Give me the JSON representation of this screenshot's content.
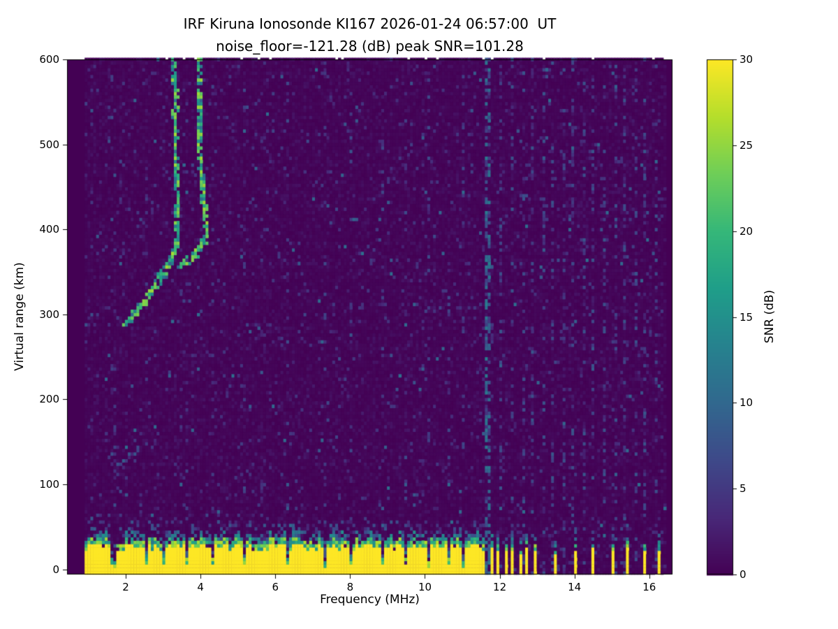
{
  "figure": {
    "background_color": "#ffffff",
    "text_color": "#000000"
  },
  "chart_data": {
    "type": "heatmap",
    "title": "IRF Kiruna Ionosonde KI167 2026-01-24 06:57:00  UT",
    "subtitle": "noise_floor=-121.28 (dB) peak SNR=101.28",
    "xlabel": "Frequency (MHz)",
    "ylabel": "Virtual range (km)",
    "colorbar_label": "SNR (dB)",
    "xlim": [
      0.43,
      16.62
    ],
    "ylim": [
      -6,
      600
    ],
    "xticks": [
      2,
      4,
      6,
      8,
      10,
      12,
      14,
      16
    ],
    "yticks": [
      0,
      100,
      200,
      300,
      400,
      500,
      600
    ],
    "colorbar_ticks": [
      0,
      5,
      10,
      15,
      20,
      25,
      30
    ],
    "clim": [
      0,
      30
    ],
    "colormap": "viridis",
    "colormap_stops": [
      "#440154",
      "#482878",
      "#3e4989",
      "#31688e",
      "#26828e",
      "#1f9e89",
      "#35b779",
      "#6ece58",
      "#b5de2b",
      "#fde725"
    ],
    "grid": false,
    "features": {
      "noise_seed": 20260124,
      "data_freq_range": [
        0.9,
        16.45
      ],
      "cell_mhz": 0.077,
      "cell_km": 4,
      "ground_echo": {
        "freq_range": [
          0.9,
          11.62
        ],
        "top_km": 27,
        "value": 30,
        "notches_mhz": [
          1.67,
          2.52,
          3.04,
          3.62,
          4.35,
          5.2,
          6.3,
          7.32,
          8.02,
          8.85,
          9.45,
          10.12,
          10.62,
          11.05
        ],
        "notch_width_mhz": 0.08
      },
      "isolated_ground_bars": {
        "freqs_mhz": [
          11.78,
          11.97,
          12.16,
          12.35,
          12.55,
          12.75,
          12.98,
          13.48,
          14.06,
          14.48,
          15.0,
          15.45,
          15.9,
          16.28
        ],
        "width_mhz": 0.08,
        "top_km": 21
      },
      "rfi_stripes": [
        {
          "freqs_mhz": [
            11.7
          ],
          "width_mhz": 0.12,
          "vmin": 4,
          "vmax": 13,
          "density": 0.5
        },
        {
          "freqs_mhz": [
            12.05,
            12.35,
            12.62,
            12.9,
            13.15,
            13.42,
            13.7,
            13.98,
            14.25,
            14.52,
            14.8,
            15.08,
            15.35,
            15.62,
            15.9,
            16.18
          ],
          "width_mhz": 0.08,
          "vmin": 2,
          "vmax": 8,
          "density": 0.22
        },
        {
          "freqs_mhz": [
            5.2,
            6.3,
            7.32,
            8.02,
            8.85,
            9.45,
            10.12,
            10.62,
            11.05
          ],
          "width_mhz": 0.08,
          "vmin": 2,
          "vmax": 7,
          "density": 0.1
        },
        {
          "freqs_mhz": [
            1.67,
            2.52,
            3.62,
            4.35
          ],
          "width_mhz": 0.08,
          "vmin": 2,
          "vmax": 6,
          "density": 0.07
        }
      ],
      "echo_traces": [
        {
          "name": "f-layer-trace-left-branch",
          "points_mhz_km": [
            [
              2.02,
              288
            ],
            [
              2.2,
              298
            ],
            [
              2.45,
              312
            ],
            [
              2.7,
              328
            ],
            [
              2.95,
              345
            ],
            [
              3.12,
              358
            ],
            [
              3.27,
              370
            ],
            [
              3.36,
              385
            ],
            [
              3.38,
              420
            ],
            [
              3.35,
              470
            ],
            [
              3.33,
              530
            ],
            [
              3.31,
              600
            ]
          ],
          "vmin": 10,
          "vmax": 26,
          "width_mhz": 0.1,
          "width_km": 10,
          "density": 2.6
        },
        {
          "name": "f-layer-trace-right-branch",
          "points_mhz_km": [
            [
              3.42,
              356
            ],
            [
              3.62,
              362
            ],
            [
              3.85,
              371
            ],
            [
              4.05,
              382
            ],
            [
              4.17,
              398
            ],
            [
              4.1,
              430
            ],
            [
              4.0,
              480
            ],
            [
              3.96,
              540
            ],
            [
              3.97,
              600
            ]
          ],
          "vmin": 10,
          "vmax": 26,
          "width_mhz": 0.1,
          "width_km": 10,
          "density": 2.6
        },
        {
          "name": "faint-low-streak",
          "points_mhz_km": [
            [
              1.7,
              120
            ],
            [
              2.0,
              130
            ],
            [
              2.35,
              142
            ]
          ],
          "vmin": 3,
          "vmax": 9,
          "width_mhz": 0.08,
          "width_km": 6,
          "density": 1.0
        }
      ]
    }
  }
}
